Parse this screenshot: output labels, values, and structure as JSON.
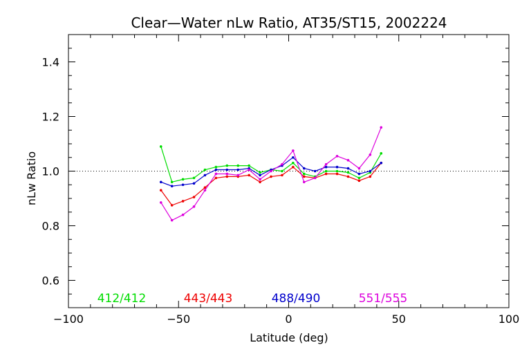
{
  "chart_data": {
    "type": "line",
    "title": "Clear—Water nLw Ratio, AT35/ST15, 2002224",
    "xlabel": "Latitude (deg)",
    "ylabel": "nLw Ratio",
    "xlim": [
      -100,
      100
    ],
    "ylim": [
      0.5,
      1.5
    ],
    "xticks": [
      -100,
      -50,
      0,
      50,
      100
    ],
    "yticks": [
      0.6,
      0.8,
      1.0,
      1.2,
      1.4
    ],
    "ytick_labels": [
      "0.6",
      "0.8",
      "1.0",
      "1.2",
      "1.4"
    ],
    "reference_line": 1.0,
    "grid": false,
    "legend_position": "bottom",
    "x": [
      -58,
      -53,
      -48,
      -43,
      -38,
      -33,
      -28,
      -23,
      -18,
      -13,
      -8,
      -3,
      2,
      7,
      12,
      17,
      22,
      27,
      32,
      37,
      42
    ],
    "series": [
      {
        "name": "412/412",
        "color": "#00dd00",
        "values": [
          1.09,
          0.96,
          0.97,
          0.975,
          1.005,
          1.015,
          1.02,
          1.02,
          1.02,
          0.995,
          1.005,
          1.0,
          1.03,
          0.99,
          0.98,
          1.0,
          1.0,
          0.995,
          0.975,
          0.995,
          1.065
        ]
      },
      {
        "name": "443/443",
        "color": "#ee0000",
        "values": [
          0.93,
          0.875,
          0.89,
          0.905,
          0.94,
          0.975,
          0.98,
          0.98,
          0.985,
          0.96,
          0.98,
          0.985,
          1.015,
          0.98,
          0.975,
          0.99,
          0.99,
          0.98,
          0.965,
          0.98,
          1.03
        ]
      },
      {
        "name": "488/490",
        "color": "#0000cc",
        "values": [
          0.96,
          0.945,
          0.95,
          0.955,
          0.985,
          1.005,
          1.005,
          1.005,
          1.01,
          0.985,
          1.005,
          1.02,
          1.05,
          1.01,
          1.0,
          1.015,
          1.015,
          1.01,
          0.99,
          1.0,
          1.03
        ]
      },
      {
        "name": "551/555",
        "color": "#dd00dd",
        "values": [
          0.885,
          0.82,
          0.84,
          0.87,
          0.93,
          0.99,
          0.99,
          0.985,
          1.005,
          0.97,
          1.0,
          1.025,
          1.075,
          0.96,
          0.975,
          1.025,
          1.055,
          1.04,
          1.01,
          1.06,
          1.16
        ]
      }
    ]
  }
}
